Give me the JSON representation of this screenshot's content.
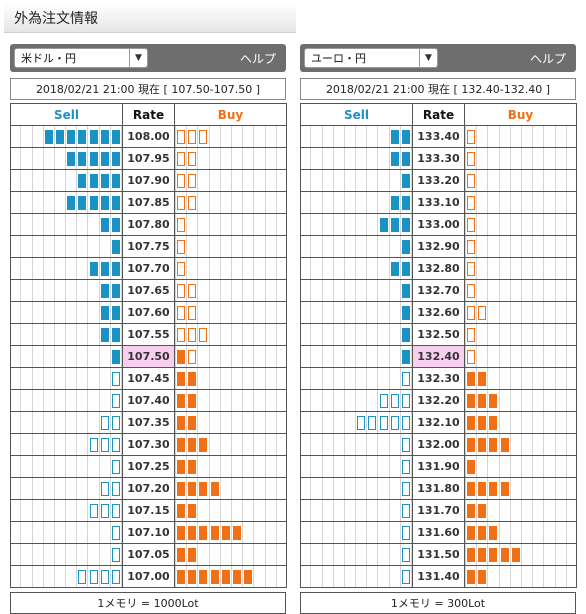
{
  "page": {
    "title": "外為注文情報"
  },
  "panels": [
    {
      "pair": "米ドル・円",
      "help": "ヘルプ",
      "timestamp": "2018/02/21  21:00 現在  [ 107.50-107.50 ]",
      "headers": {
        "sell": "Sell",
        "rate": "Rate",
        "buy": "Buy"
      },
      "current_rate": "107.50",
      "rows": [
        {
          "rate": "108.00",
          "sell": 7,
          "sell_filled": true,
          "buy": 3,
          "buy_filled": false
        },
        {
          "rate": "107.95",
          "sell": 5,
          "sell_filled": true,
          "buy": 2,
          "buy_filled": false
        },
        {
          "rate": "107.90",
          "sell": 4,
          "sell_filled": true,
          "buy": 2,
          "buy_filled": false
        },
        {
          "rate": "107.85",
          "sell": 5,
          "sell_filled": true,
          "buy": 2,
          "buy_filled": false
        },
        {
          "rate": "107.80",
          "sell": 2,
          "sell_filled": true,
          "buy": 1,
          "buy_filled": false
        },
        {
          "rate": "107.75",
          "sell": 1,
          "sell_filled": true,
          "buy": 1,
          "buy_filled": false
        },
        {
          "rate": "107.70",
          "sell": 3,
          "sell_filled": true,
          "buy": 1,
          "buy_filled": false
        },
        {
          "rate": "107.65",
          "sell": 2,
          "sell_filled": true,
          "buy": 2,
          "buy_filled": false
        },
        {
          "rate": "107.60",
          "sell": 2,
          "sell_filled": true,
          "buy": 2,
          "buy_filled": false
        },
        {
          "rate": "107.55",
          "sell": 2,
          "sell_filled": true,
          "buy": 3,
          "buy_filled": false
        },
        {
          "rate": "107.50",
          "sell": 1,
          "sell_filled": true,
          "buy": 2,
          "buy_filled": false,
          "buy_first_filled": true
        },
        {
          "rate": "107.45",
          "sell": 1,
          "sell_filled": false,
          "buy": 2,
          "buy_filled": true
        },
        {
          "rate": "107.40",
          "sell": 1,
          "sell_filled": false,
          "buy": 2,
          "buy_filled": true
        },
        {
          "rate": "107.35",
          "sell": 2,
          "sell_filled": false,
          "buy": 2,
          "buy_filled": true
        },
        {
          "rate": "107.30",
          "sell": 3,
          "sell_filled": false,
          "buy": 3,
          "buy_filled": true
        },
        {
          "rate": "107.25",
          "sell": 1,
          "sell_filled": false,
          "buy": 2,
          "buy_filled": true
        },
        {
          "rate": "107.20",
          "sell": 2,
          "sell_filled": false,
          "buy": 4,
          "buy_filled": true
        },
        {
          "rate": "107.15",
          "sell": 3,
          "sell_filled": false,
          "buy": 2,
          "buy_filled": true
        },
        {
          "rate": "107.10",
          "sell": 1,
          "sell_filled": false,
          "buy": 6,
          "buy_filled": true
        },
        {
          "rate": "107.05",
          "sell": 1,
          "sell_filled": false,
          "buy": 2,
          "buy_filled": true
        },
        {
          "rate": "107.00",
          "sell": 4,
          "sell_filled": false,
          "buy": 7,
          "buy_filled": true
        }
      ],
      "footer": "1メモリ = 1000Lot"
    },
    {
      "pair": "ユーロ・円",
      "help": "ヘルプ",
      "timestamp": "2018/02/21  21:00 現在  [ 132.40-132.40 ]",
      "headers": {
        "sell": "Sell",
        "rate": "Rate",
        "buy": "Buy"
      },
      "current_rate": "132.40",
      "rows": [
        {
          "rate": "133.40",
          "sell": 2,
          "sell_filled": true,
          "buy": 1,
          "buy_filled": false
        },
        {
          "rate": "133.30",
          "sell": 2,
          "sell_filled": true,
          "buy": 1,
          "buy_filled": false
        },
        {
          "rate": "133.20",
          "sell": 1,
          "sell_filled": true,
          "buy": 1,
          "buy_filled": false
        },
        {
          "rate": "133.10",
          "sell": 2,
          "sell_filled": true,
          "buy": 1,
          "buy_filled": false
        },
        {
          "rate": "133.00",
          "sell": 3,
          "sell_filled": true,
          "buy": 1,
          "buy_filled": false
        },
        {
          "rate": "132.90",
          "sell": 1,
          "sell_filled": true,
          "buy": 1,
          "buy_filled": false
        },
        {
          "rate": "132.80",
          "sell": 2,
          "sell_filled": true,
          "buy": 1,
          "buy_filled": false
        },
        {
          "rate": "132.70",
          "sell": 1,
          "sell_filled": true,
          "buy": 1,
          "buy_filled": false
        },
        {
          "rate": "132.60",
          "sell": 1,
          "sell_filled": true,
          "buy": 2,
          "buy_filled": false
        },
        {
          "rate": "132.50",
          "sell": 1,
          "sell_filled": true,
          "buy": 1,
          "buy_filled": false
        },
        {
          "rate": "132.40",
          "sell": 1,
          "sell_filled": true,
          "buy": 1,
          "buy_filled": false
        },
        {
          "rate": "132.30",
          "sell": 1,
          "sell_filled": false,
          "buy": 2,
          "buy_filled": true
        },
        {
          "rate": "132.20",
          "sell": 3,
          "sell_filled": false,
          "buy": 3,
          "buy_filled": true
        },
        {
          "rate": "132.10",
          "sell": 5,
          "sell_filled": false,
          "buy": 3,
          "buy_filled": true
        },
        {
          "rate": "132.00",
          "sell": 1,
          "sell_filled": false,
          "buy": 4,
          "buy_filled": true
        },
        {
          "rate": "131.90",
          "sell": 1,
          "sell_filled": false,
          "buy": 1,
          "buy_filled": true
        },
        {
          "rate": "131.80",
          "sell": 1,
          "sell_filled": false,
          "buy": 4,
          "buy_filled": true
        },
        {
          "rate": "131.70",
          "sell": 1,
          "sell_filled": false,
          "buy": 2,
          "buy_filled": true
        },
        {
          "rate": "131.60",
          "sell": 1,
          "sell_filled": false,
          "buy": 3,
          "buy_filled": true
        },
        {
          "rate": "131.50",
          "sell": 1,
          "sell_filled": false,
          "buy": 5,
          "buy_filled": true
        },
        {
          "rate": "131.40",
          "sell": 1,
          "sell_filled": false,
          "buy": 2,
          "buy_filled": true
        }
      ],
      "footer": "1メモリ = 300Lot"
    }
  ],
  "colors": {
    "sell": "#1a93c4",
    "buy": "#f07016",
    "current_rate_bg": "#f8cff0",
    "toolbar": "#6e6e6e"
  },
  "icons": {
    "dropdown": "chevron-down-icon"
  }
}
